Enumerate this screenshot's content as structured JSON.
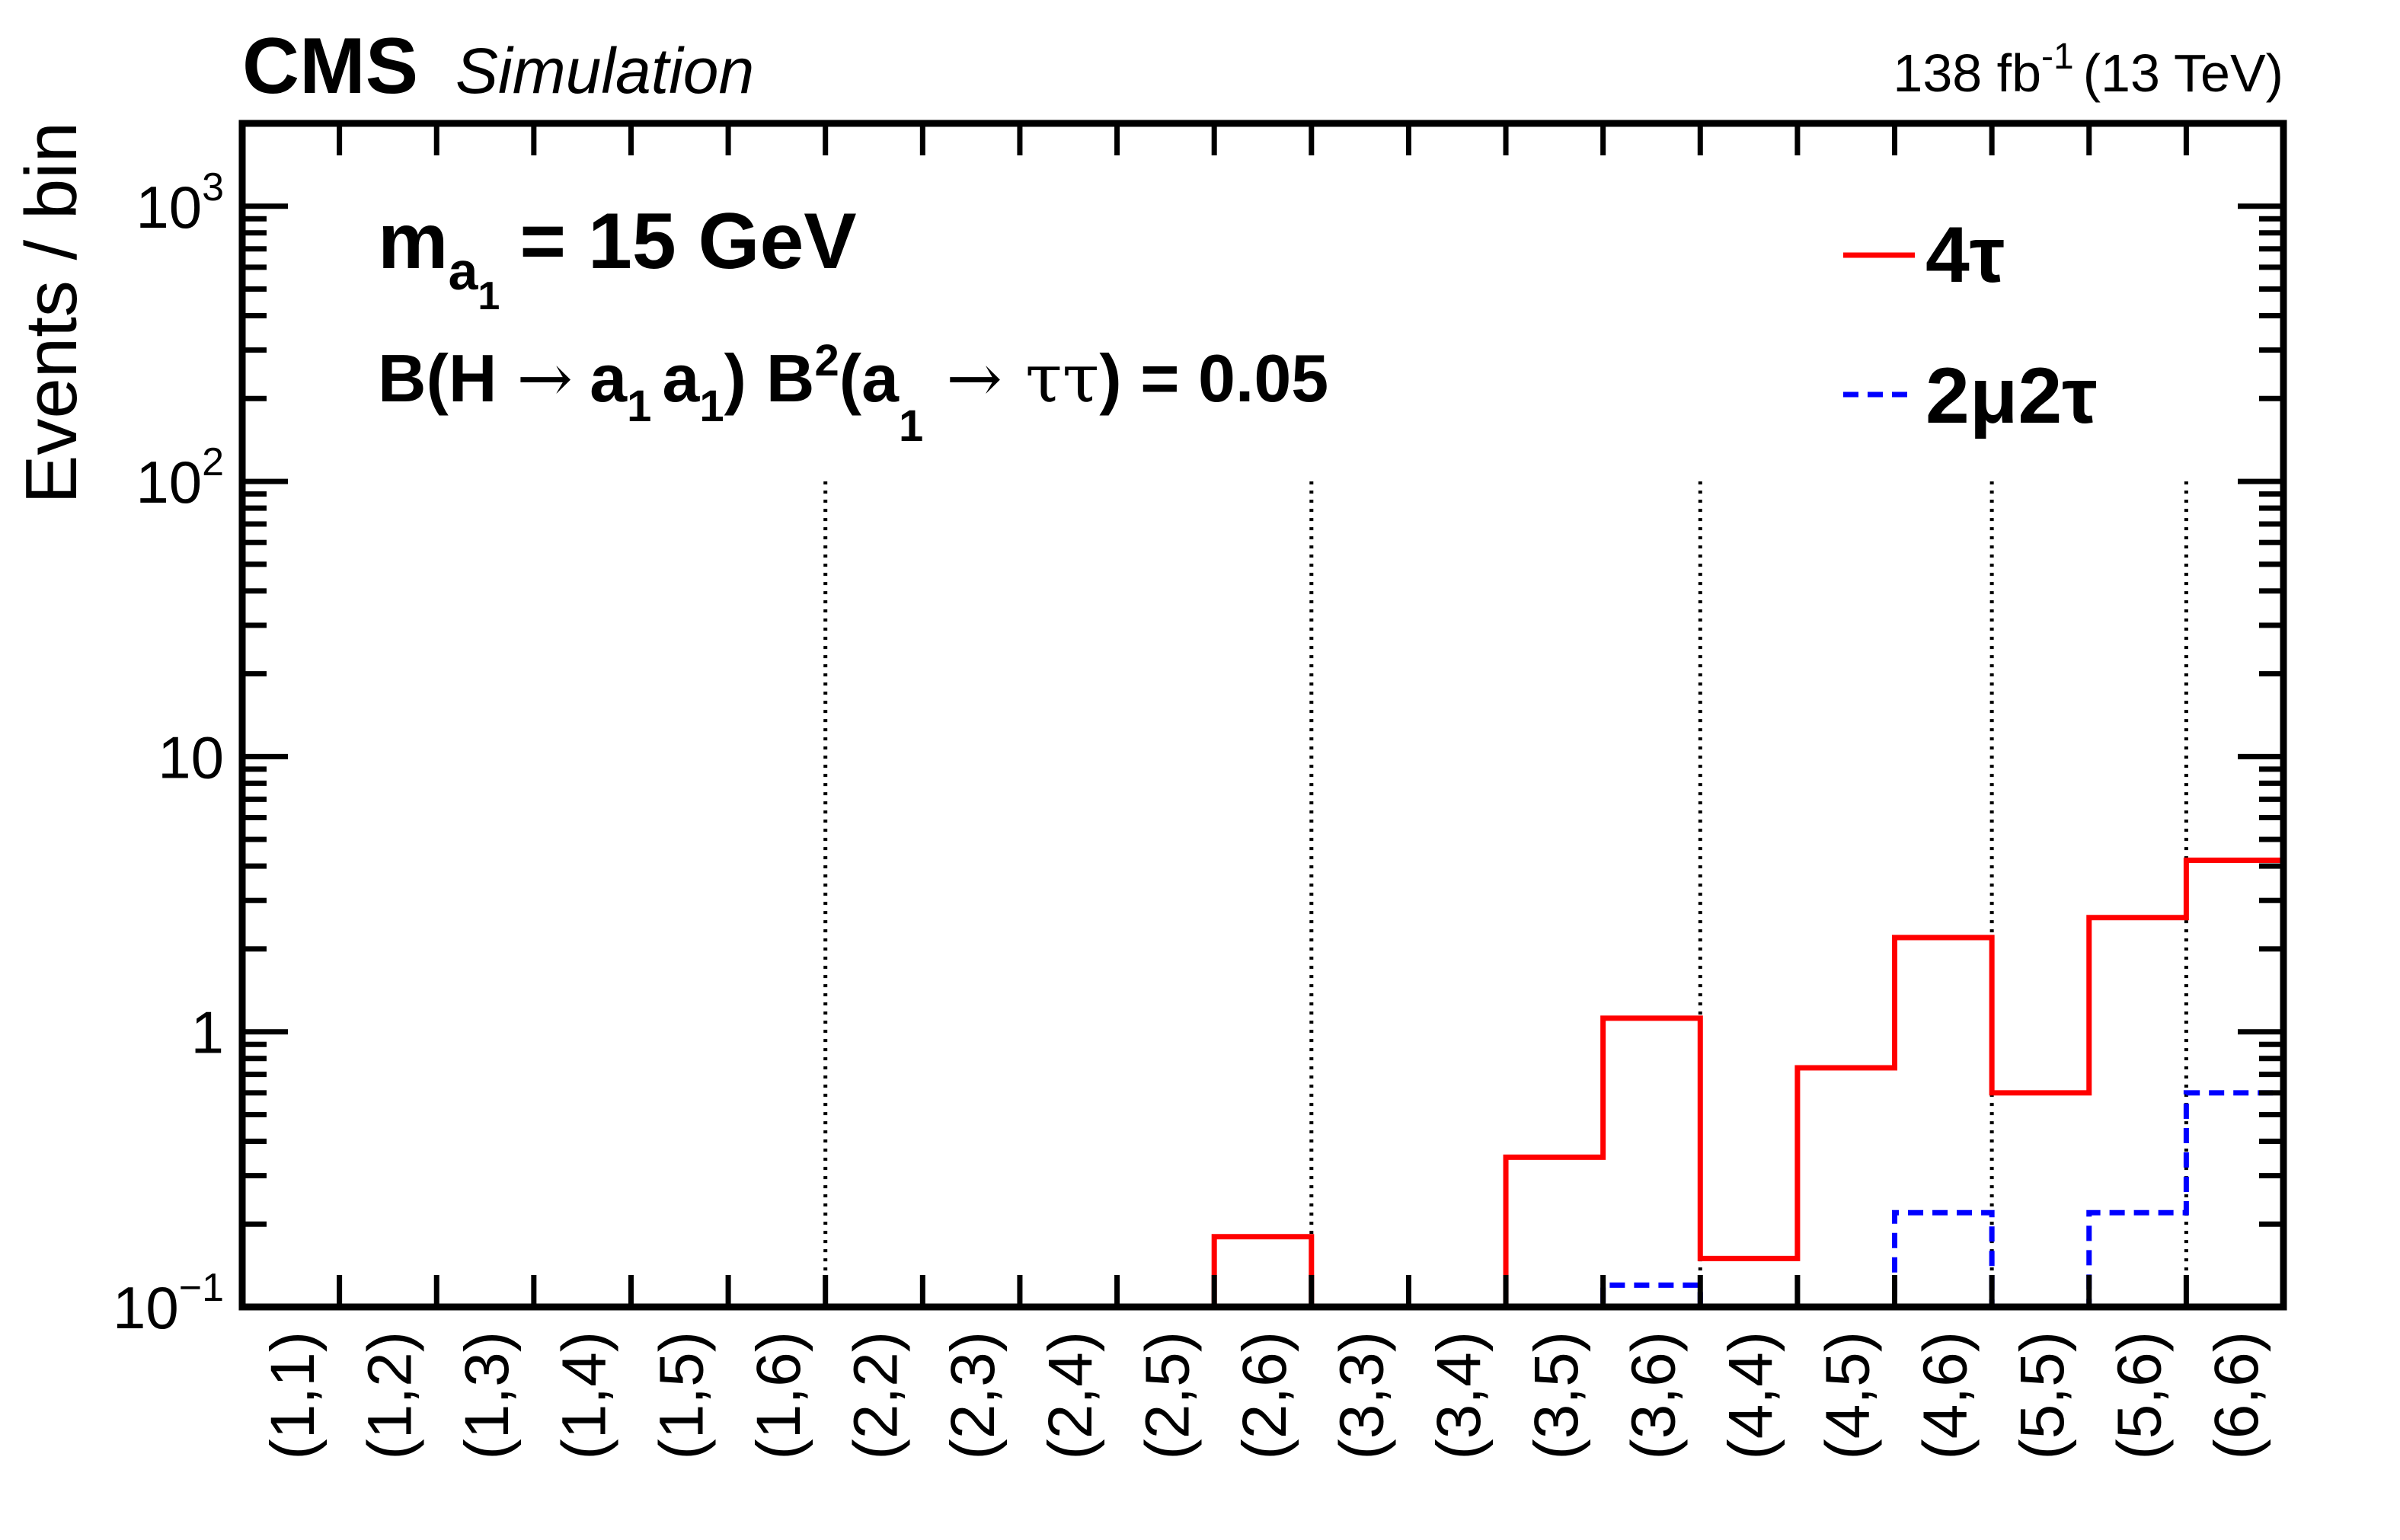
{
  "header": {
    "experiment": "CMS",
    "status": "Simulation",
    "lumi_value": "138 fb",
    "lumi_exponent": "-1",
    "energy": "(13 TeV)"
  },
  "annotations": {
    "mass_symbol": "m",
    "mass_sub_a": "a",
    "mass_sub_1": "1",
    "mass_value": "= 15 GeV",
    "br_text_1": "B(H",
    "arrow": "→",
    "a_sym": "a",
    "one": "1",
    "br_b": "B",
    "br_sup2": "2",
    "open_a": "(a",
    "tautau": "ττ",
    "br_value": ") = 0.05",
    "close_paren": ")"
  },
  "legend": [
    {
      "label": "4τ",
      "color": "#ff0000",
      "style": "solid"
    },
    {
      "label": "2μ2τ",
      "color": "#0000ff",
      "style": "dashed"
    }
  ],
  "colors": {
    "red": "#ff0000",
    "blue": "#0000ff",
    "frame": "#000000"
  },
  "chart_data": {
    "type": "step-histogram",
    "title": "",
    "xlabel": "",
    "ylabel": "Events / bin",
    "yscale": "log",
    "ylim": [
      0.1,
      2000
    ],
    "categories": [
      "(1,1)",
      "(1,2)",
      "(1,3)",
      "(1,4)",
      "(1,5)",
      "(1,6)",
      "(2,2)",
      "(2,3)",
      "(2,4)",
      "(2,5)",
      "(2,6)",
      "(3,3)",
      "(3,4)",
      "(3,5)",
      "(3,6)",
      "(4,4)",
      "(4,5)",
      "(4,6)",
      "(5,5)",
      "(5,6)",
      "(6,6)"
    ],
    "yticks": [
      {
        "value": 0.1,
        "label": "10",
        "exp": "−1"
      },
      {
        "value": 1,
        "label": "1",
        "exp": ""
      },
      {
        "value": 10,
        "label": "10",
        "exp": ""
      },
      {
        "value": 100,
        "label": "10",
        "exp": "2"
      },
      {
        "value": 1000,
        "label": "10",
        "exp": "3"
      }
    ],
    "group_dividers_after": [
      6,
      11,
      15,
      18,
      20
    ],
    "series": [
      {
        "name": "4τ",
        "color": "#ff0000",
        "style": "solid",
        "values": [
          0.1,
          0.1,
          0.1,
          0.1,
          0.1,
          0.1,
          0.1,
          0.1,
          0.1,
          0.1,
          0.18,
          0.1,
          0.1,
          0.35,
          1.12,
          0.15,
          0.74,
          2.2,
          0.6,
          2.6,
          4.2
        ]
      },
      {
        "name": "2μ2τ",
        "color": "#0000ff",
        "style": "dashed",
        "values": [
          0.1,
          0.1,
          0.1,
          0.1,
          0.1,
          0.1,
          0.1,
          0.1,
          0.1,
          0.1,
          0.1,
          0.1,
          0.1,
          0.1,
          0.12,
          0.1,
          0.1,
          0.22,
          0.1,
          0.22,
          0.6
        ]
      }
    ]
  }
}
